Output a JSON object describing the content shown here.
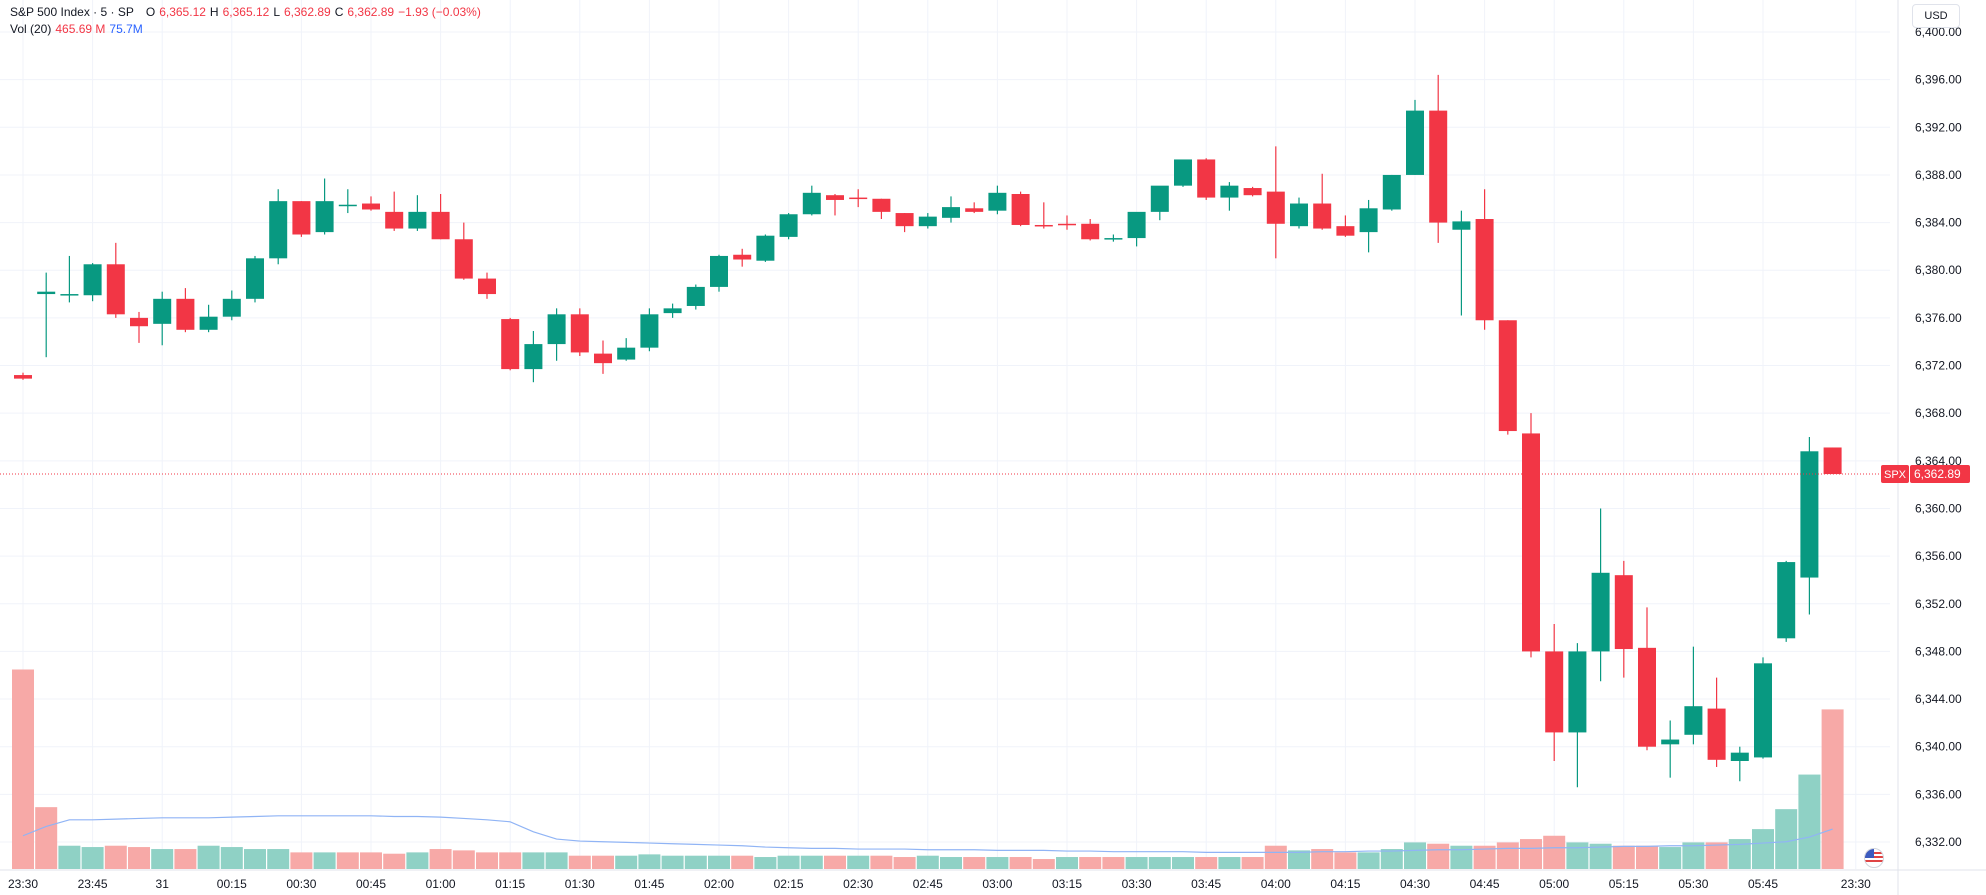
{
  "header": {
    "title": "S&P 500 Index · 5 · SP",
    "open_label": "O",
    "open": "6,365.12",
    "high_label": "H",
    "high": "6,365.12",
    "low_label": "L",
    "low": "6,362.89",
    "close_label": "C",
    "close": "6,362.89",
    "change": "−1.93 (−0.03%)",
    "vol_label": "Vol (20)",
    "vol_value": "465.69",
    "vol_unit": "M",
    "vol_ma": "75.7M"
  },
  "currency": "USD",
  "price_tag": {
    "symbol": "SPX",
    "value": "6,362.89"
  },
  "colors": {
    "up": "#089981",
    "down": "#F23645",
    "vol_up": "#8fd1c5",
    "vol_down": "#f7a9a7",
    "ma": "#90b4f5"
  },
  "chart_data": {
    "type": "candlestick",
    "interval": "5",
    "ylim": [
      6330,
      6402
    ],
    "y_ticks": [
      "6,400.00",
      "6,396.00",
      "6,392.00",
      "6,388.00",
      "6,384.00",
      "6,380.00",
      "6,376.00",
      "6,372.00",
      "6,368.00",
      "6,364.00",
      "6,360.00",
      "6,356.00",
      "6,352.00",
      "6,348.00",
      "6,344.00",
      "6,340.00",
      "6,336.00",
      "6,332.00"
    ],
    "y_tick_values": [
      6400,
      6396,
      6392,
      6388,
      6384,
      6380,
      6376,
      6372,
      6368,
      6364,
      6360,
      6356,
      6352,
      6348,
      6344,
      6340,
      6336,
      6332
    ],
    "x_ticks": [
      {
        "label": "23:30",
        "index": 0
      },
      {
        "label": "23:45",
        "index": 3
      },
      {
        "label": "31",
        "index": 6
      },
      {
        "label": "00:15",
        "index": 9
      },
      {
        "label": "00:30",
        "index": 12
      },
      {
        "label": "00:45",
        "index": 15
      },
      {
        "label": "01:00",
        "index": 18
      },
      {
        "label": "01:15",
        "index": 21
      },
      {
        "label": "01:30",
        "index": 24
      },
      {
        "label": "01:45",
        "index": 27
      },
      {
        "label": "02:00",
        "index": 30
      },
      {
        "label": "02:15",
        "index": 33
      },
      {
        "label": "02:30",
        "index": 36
      },
      {
        "label": "02:45",
        "index": 39
      },
      {
        "label": "03:00",
        "index": 42
      },
      {
        "label": "03:15",
        "index": 45
      },
      {
        "label": "03:30",
        "index": 48
      },
      {
        "label": "03:45",
        "index": 51
      },
      {
        "label": "04:00",
        "index": 54
      },
      {
        "label": "04:15",
        "index": 57
      },
      {
        "label": "04:30",
        "index": 60
      },
      {
        "label": "04:45",
        "index": 63
      },
      {
        "label": "05:00",
        "index": 66
      },
      {
        "label": "05:15",
        "index": 69
      },
      {
        "label": "05:30",
        "index": 72
      },
      {
        "label": "05:45",
        "index": 75
      },
      {
        "label": "23:30",
        "index": 79
      }
    ],
    "candles": [
      [
        6371.2,
        6371.4,
        6370.8,
        6370.9
      ],
      [
        6378.0,
        6379.8,
        6372.7,
        6378.2
      ],
      [
        6378.0,
        6381.2,
        6377.3,
        6378.0
      ],
      [
        6377.9,
        6380.6,
        6377.4,
        6380.5
      ],
      [
        6380.5,
        6382.3,
        6376.0,
        6376.3
      ],
      [
        6376.0,
        6376.5,
        6373.9,
        6375.3
      ],
      [
        6375.5,
        6378.2,
        6373.7,
        6377.6
      ],
      [
        6377.6,
        6378.5,
        6374.8,
        6375.0
      ],
      [
        6375.0,
        6377.1,
        6374.8,
        6376.1
      ],
      [
        6376.1,
        6378.3,
        6375.8,
        6377.6
      ],
      [
        6377.6,
        6381.2,
        6377.3,
        6381.0
      ],
      [
        6381.0,
        6386.8,
        6380.5,
        6385.8
      ],
      [
        6385.8,
        6385.8,
        6382.8,
        6383.0
      ],
      [
        6383.2,
        6387.7,
        6383.0,
        6385.8
      ],
      [
        6385.4,
        6386.8,
        6384.8,
        6385.5
      ],
      [
        6385.6,
        6386.2,
        6385.0,
        6385.1
      ],
      [
        6384.9,
        6386.6,
        6383.3,
        6383.5
      ],
      [
        6383.5,
        6386.3,
        6383.3,
        6384.9
      ],
      [
        6384.9,
        6386.4,
        6382.6,
        6382.6
      ],
      [
        6382.6,
        6384.0,
        6379.2,
        6379.3
      ],
      [
        6379.3,
        6379.8,
        6377.6,
        6378.0
      ],
      [
        6375.9,
        6376.0,
        6371.6,
        6371.7
      ],
      [
        6371.7,
        6374.9,
        6370.6,
        6373.8
      ],
      [
        6373.8,
        6376.8,
        6372.4,
        6376.3
      ],
      [
        6376.3,
        6376.8,
        6372.8,
        6373.1
      ],
      [
        6373.0,
        6374.1,
        6371.3,
        6372.2
      ],
      [
        6372.5,
        6374.3,
        6372.4,
        6373.5
      ],
      [
        6373.5,
        6376.8,
        6373.2,
        6376.3
      ],
      [
        6376.4,
        6377.2,
        6376.0,
        6376.8
      ],
      [
        6377.0,
        6378.8,
        6376.7,
        6378.6
      ],
      [
        6378.6,
        6381.3,
        6378.2,
        6381.2
      ],
      [
        6381.3,
        6381.8,
        6380.3,
        6380.9
      ],
      [
        6380.8,
        6383.0,
        6380.7,
        6382.9
      ],
      [
        6382.8,
        6384.8,
        6382.6,
        6384.7
      ],
      [
        6384.7,
        6387.1,
        6384.6,
        6386.5
      ],
      [
        6386.3,
        6386.4,
        6384.6,
        6385.9
      ],
      [
        6386.1,
        6386.8,
        6385.3,
        6386.0
      ],
      [
        6386.0,
        6386.0,
        6384.3,
        6384.9
      ],
      [
        6384.8,
        6384.8,
        6383.2,
        6383.7
      ],
      [
        6383.7,
        6384.8,
        6383.5,
        6384.5
      ],
      [
        6384.4,
        6386.2,
        6384.0,
        6385.3
      ],
      [
        6385.2,
        6385.7,
        6384.8,
        6384.9
      ],
      [
        6385.0,
        6387.1,
        6384.7,
        6386.5
      ],
      [
        6386.4,
        6386.6,
        6383.7,
        6383.8
      ],
      [
        6383.8,
        6385.7,
        6383.5,
        6383.7
      ],
      [
        6383.9,
        6384.6,
        6383.4,
        6383.8
      ],
      [
        6383.9,
        6384.3,
        6382.5,
        6382.6
      ],
      [
        6382.7,
        6383.0,
        6382.4,
        6382.7
      ],
      [
        6382.7,
        6384.8,
        6382.0,
        6384.9
      ],
      [
        6384.9,
        6387.0,
        6384.2,
        6387.1
      ],
      [
        6387.1,
        6389.2,
        6387.0,
        6389.3
      ],
      [
        6389.3,
        6389.4,
        6385.9,
        6386.1
      ],
      [
        6386.1,
        6387.4,
        6385.0,
        6387.1
      ],
      [
        6386.9,
        6387.0,
        6386.2,
        6386.3
      ],
      [
        6386.6,
        6390.4,
        6381.0,
        6383.9
      ],
      [
        6383.7,
        6386.1,
        6383.5,
        6385.6
      ],
      [
        6385.6,
        6388.1,
        6383.4,
        6383.5
      ],
      [
        6383.7,
        6384.6,
        6382.8,
        6382.9
      ],
      [
        6383.2,
        6385.9,
        6381.5,
        6385.2
      ],
      [
        6385.1,
        6388.0,
        6385.0,
        6388.0
      ],
      [
        6388.0,
        6394.3,
        6388.0,
        6393.4
      ],
      [
        6393.4,
        6396.4,
        6382.3,
        6384.0
      ],
      [
        6383.4,
        6385.0,
        6376.2,
        6384.1
      ],
      [
        6384.3,
        6386.8,
        6375.0,
        6375.8
      ],
      [
        6375.8,
        6375.8,
        6366.2,
        6366.5
      ],
      [
        6366.3,
        6368.0,
        6347.5,
        6348.0
      ],
      [
        6348.0,
        6350.3,
        6338.8,
        6341.2
      ],
      [
        6341.2,
        6348.7,
        6336.6,
        6348.0
      ],
      [
        6348.0,
        6360.0,
        6345.5,
        6354.6
      ],
      [
        6354.4,
        6355.6,
        6345.8,
        6348.2
      ],
      [
        6348.3,
        6351.7,
        6339.7,
        6340.0
      ],
      [
        6340.2,
        6342.2,
        6337.4,
        6340.6
      ],
      [
        6341.0,
        6348.4,
        6340.2,
        6343.4
      ],
      [
        6343.2,
        6345.8,
        6338.3,
        6338.9
      ],
      [
        6338.8,
        6340.0,
        6337.1,
        6339.5
      ],
      [
        6339.1,
        6347.5,
        6339.0,
        6347.0
      ],
      [
        6349.1,
        6355.6,
        6348.8,
        6355.5
      ],
      [
        6354.2,
        6366.0,
        6351.1,
        6364.8
      ],
      [
        6365.12,
        6365.12,
        6362.89,
        6362.89
      ]
    ],
    "volumes": [
      {
        "v": 300,
        "dir": "down"
      },
      {
        "v": 93,
        "dir": "down"
      },
      {
        "v": 35,
        "dir": "up"
      },
      {
        "v": 33,
        "dir": "up"
      },
      {
        "v": 35,
        "dir": "down"
      },
      {
        "v": 33,
        "dir": "down"
      },
      {
        "v": 30,
        "dir": "up"
      },
      {
        "v": 30,
        "dir": "down"
      },
      {
        "v": 35,
        "dir": "up"
      },
      {
        "v": 33,
        "dir": "up"
      },
      {
        "v": 30,
        "dir": "up"
      },
      {
        "v": 30,
        "dir": "up"
      },
      {
        "v": 25,
        "dir": "down"
      },
      {
        "v": 25,
        "dir": "up"
      },
      {
        "v": 25,
        "dir": "down"
      },
      {
        "v": 25,
        "dir": "down"
      },
      {
        "v": 23,
        "dir": "down"
      },
      {
        "v": 25,
        "dir": "up"
      },
      {
        "v": 30,
        "dir": "down"
      },
      {
        "v": 28,
        "dir": "down"
      },
      {
        "v": 25,
        "dir": "down"
      },
      {
        "v": 25,
        "dir": "down"
      },
      {
        "v": 25,
        "dir": "up"
      },
      {
        "v": 25,
        "dir": "up"
      },
      {
        "v": 20,
        "dir": "down"
      },
      {
        "v": 20,
        "dir": "down"
      },
      {
        "v": 20,
        "dir": "up"
      },
      {
        "v": 22,
        "dir": "up"
      },
      {
        "v": 20,
        "dir": "up"
      },
      {
        "v": 20,
        "dir": "up"
      },
      {
        "v": 20,
        "dir": "up"
      },
      {
        "v": 20,
        "dir": "down"
      },
      {
        "v": 18,
        "dir": "up"
      },
      {
        "v": 20,
        "dir": "up"
      },
      {
        "v": 20,
        "dir": "up"
      },
      {
        "v": 20,
        "dir": "down"
      },
      {
        "v": 20,
        "dir": "up"
      },
      {
        "v": 20,
        "dir": "down"
      },
      {
        "v": 18,
        "dir": "down"
      },
      {
        "v": 20,
        "dir": "up"
      },
      {
        "v": 18,
        "dir": "up"
      },
      {
        "v": 18,
        "dir": "down"
      },
      {
        "v": 18,
        "dir": "up"
      },
      {
        "v": 18,
        "dir": "down"
      },
      {
        "v": 15,
        "dir": "down"
      },
      {
        "v": 18,
        "dir": "up"
      },
      {
        "v": 18,
        "dir": "down"
      },
      {
        "v": 18,
        "dir": "down"
      },
      {
        "v": 18,
        "dir": "up"
      },
      {
        "v": 18,
        "dir": "up"
      },
      {
        "v": 18,
        "dir": "up"
      },
      {
        "v": 18,
        "dir": "down"
      },
      {
        "v": 18,
        "dir": "up"
      },
      {
        "v": 18,
        "dir": "down"
      },
      {
        "v": 35,
        "dir": "down"
      },
      {
        "v": 28,
        "dir": "up"
      },
      {
        "v": 30,
        "dir": "down"
      },
      {
        "v": 25,
        "dir": "down"
      },
      {
        "v": 25,
        "dir": "up"
      },
      {
        "v": 30,
        "dir": "up"
      },
      {
        "v": 40,
        "dir": "up"
      },
      {
        "v": 38,
        "dir": "down"
      },
      {
        "v": 35,
        "dir": "up"
      },
      {
        "v": 35,
        "dir": "down"
      },
      {
        "v": 40,
        "dir": "down"
      },
      {
        "v": 45,
        "dir": "down"
      },
      {
        "v": 50,
        "dir": "down"
      },
      {
        "v": 40,
        "dir": "up"
      },
      {
        "v": 38,
        "dir": "up"
      },
      {
        "v": 35,
        "dir": "down"
      },
      {
        "v": 35,
        "dir": "down"
      },
      {
        "v": 33,
        "dir": "up"
      },
      {
        "v": 40,
        "dir": "up"
      },
      {
        "v": 40,
        "dir": "down"
      },
      {
        "v": 45,
        "dir": "up"
      },
      {
        "v": 60,
        "dir": "up"
      },
      {
        "v": 90,
        "dir": "up"
      },
      {
        "v": 142,
        "dir": "up"
      },
      {
        "v": 240,
        "dir": "down"
      }
    ],
    "volume_ma": [
      50,
      64,
      74,
      74,
      75,
      76,
      77,
      77,
      77,
      78,
      79,
      80,
      80,
      80,
      80,
      80,
      79,
      79,
      78,
      76,
      74,
      71,
      56,
      45,
      42,
      41,
      40,
      39,
      38,
      37,
      36,
      35,
      33,
      32,
      31,
      31,
      30,
      30,
      30,
      29,
      29,
      29,
      28,
      28,
      28,
      27,
      27,
      26,
      26,
      26,
      26,
      25,
      25,
      25,
      25,
      25,
      26,
      26,
      27,
      27,
      28,
      29,
      29,
      30,
      31,
      31,
      32,
      32,
      33,
      34,
      34,
      35,
      35,
      36,
      37,
      39,
      41,
      48,
      60
    ]
  }
}
